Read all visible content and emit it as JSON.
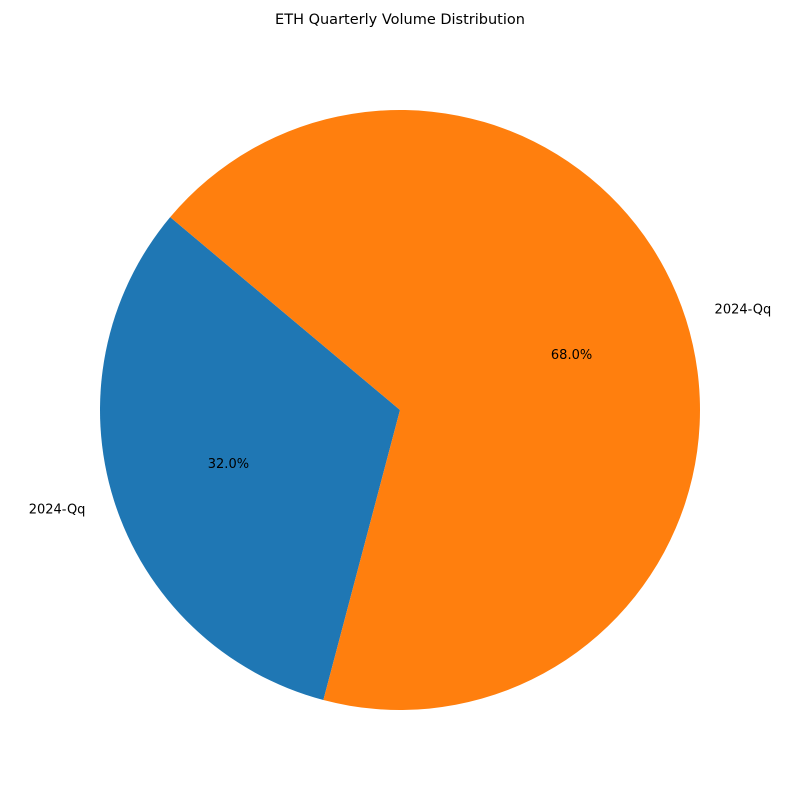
{
  "chart_data": {
    "type": "pie",
    "title": "ETH Quarterly Volume Distribution",
    "slices": [
      {
        "label": "2024-Qq",
        "value": 32.0,
        "pct_label": "32.0%",
        "color": "#1f77b4"
      },
      {
        "label": "2024-Qq",
        "value": 68.0,
        "pct_label": "68.0%",
        "color": "#ff7f0e"
      }
    ],
    "start_angle_deg": 140,
    "direction": "counterclockwise",
    "legend": "none"
  }
}
